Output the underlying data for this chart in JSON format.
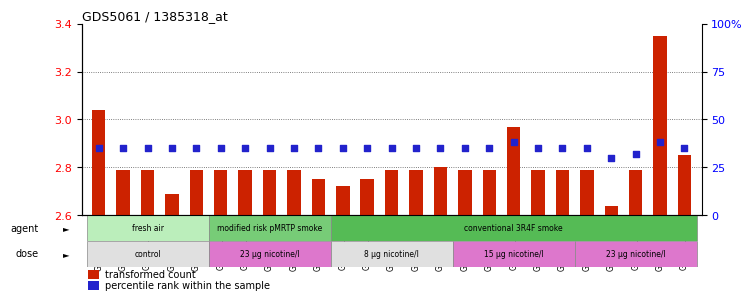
{
  "title": "GDS5061 / 1385318_at",
  "samples": [
    "GSM1217156",
    "GSM1217157",
    "GSM1217158",
    "GSM1217159",
    "GSM1217160",
    "GSM1217161",
    "GSM1217162",
    "GSM1217163",
    "GSM1217164",
    "GSM1217165",
    "GSM1217171",
    "GSM1217172",
    "GSM1217173",
    "GSM1217174",
    "GSM1217175",
    "GSM1217166",
    "GSM1217167",
    "GSM1217168",
    "GSM1217169",
    "GSM1217170",
    "GSM1217176",
    "GSM1217177",
    "GSM1217178",
    "GSM1217179",
    "GSM1217180"
  ],
  "bar_values": [
    3.04,
    2.79,
    2.79,
    2.69,
    2.79,
    2.79,
    2.79,
    2.79,
    2.79,
    2.75,
    2.72,
    2.75,
    2.79,
    2.79,
    2.8,
    2.79,
    2.79,
    2.97,
    2.79,
    2.79,
    2.79,
    2.64,
    2.79,
    3.35,
    2.85
  ],
  "percentile_values": [
    35,
    35,
    35,
    35,
    35,
    35,
    35,
    35,
    35,
    35,
    35,
    35,
    35,
    35,
    35,
    35,
    35,
    38,
    35,
    35,
    35,
    30,
    32,
    38,
    35
  ],
  "ylim_left": [
    2.6,
    3.4
  ],
  "ylim_right": [
    0,
    100
  ],
  "yticks_left": [
    2.6,
    2.8,
    3.0,
    3.2,
    3.4
  ],
  "yticks_right": [
    0,
    25,
    50,
    75,
    100
  ],
  "bar_color": "#cc2200",
  "dot_color": "#2222cc",
  "gridline_color": "#555555",
  "agent_groups": [
    {
      "label": "fresh air",
      "start": 0,
      "end": 5,
      "color": "#bbeebb"
    },
    {
      "label": "modified risk pMRTP smoke",
      "start": 5,
      "end": 10,
      "color": "#77cc77"
    },
    {
      "label": "conventional 3R4F smoke",
      "start": 10,
      "end": 25,
      "color": "#55bb55"
    }
  ],
  "dose_groups": [
    {
      "label": "control",
      "start": 0,
      "end": 5,
      "color": "#e0e0e0"
    },
    {
      "label": "23 µg nicotine/l",
      "start": 5,
      "end": 10,
      "color": "#dd77cc"
    },
    {
      "label": "8 µg nicotine/l",
      "start": 10,
      "end": 15,
      "color": "#e0e0e0"
    },
    {
      "label": "15 µg nicotine/l",
      "start": 15,
      "end": 20,
      "color": "#dd77cc"
    },
    {
      "label": "23 µg nicotine/l",
      "start": 20,
      "end": 25,
      "color": "#dd77cc"
    }
  ],
  "legend_items": [
    {
      "label": "transformed count",
      "color": "#cc2200"
    },
    {
      "label": "percentile rank within the sample",
      "color": "#2222cc"
    }
  ],
  "background_color": "#ffffff"
}
